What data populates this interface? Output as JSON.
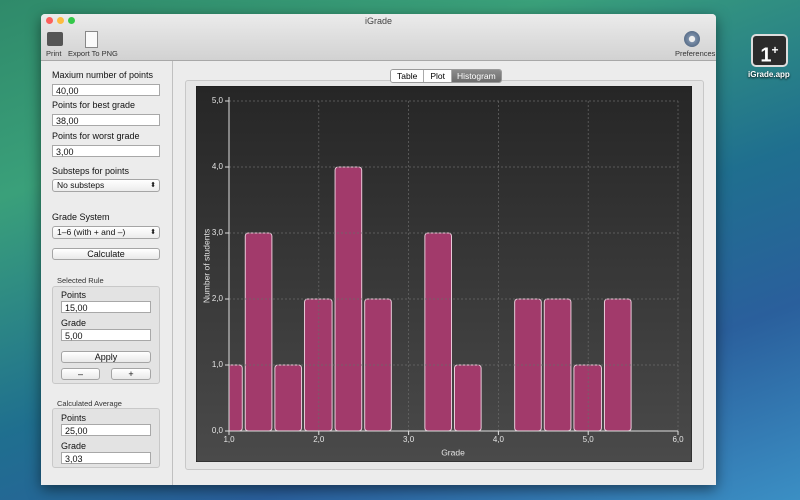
{
  "window": {
    "title": "iGrade"
  },
  "toolbar": {
    "print": "Print",
    "export": "Export To PNG",
    "preferences": "Preferences"
  },
  "desktop_icon": {
    "glyph": "1",
    "glyph_sup": "+",
    "label": "iGrade.app"
  },
  "sidebar": {
    "max_points": {
      "label": "Maxium number of points",
      "value": "40,00"
    },
    "best_grade": {
      "label": "Points for best grade",
      "value": "38,00"
    },
    "worst_grade": {
      "label": "Points for worst grade",
      "value": "3,00"
    },
    "substeps": {
      "label": "Substeps for points",
      "value": "No substeps"
    },
    "grade_system": {
      "label": "Grade System",
      "value": "1–6 (with + and –)"
    },
    "calculate": "Calculate",
    "selected_rule": {
      "title": "Selected Rule",
      "points_label": "Points",
      "points": "15,00",
      "grade_label": "Grade",
      "grade": "5,00",
      "apply": "Apply",
      "minus": "–",
      "plus": "+"
    },
    "calculated_average": {
      "title": "Calculated Average",
      "points_label": "Points",
      "points": "25,00",
      "grade_label": "Grade",
      "grade": "3,03"
    }
  },
  "tabs": [
    "Table",
    "Plot",
    "Histogram"
  ],
  "chart_data": {
    "type": "histogram",
    "bins": [
      0.83,
      1.17,
      1.5,
      1.83,
      2.17,
      2.5,
      2.83,
      3.17,
      3.5,
      3.83,
      4.17,
      4.5,
      4.83,
      5.17,
      5.5
    ],
    "values": [
      1,
      3,
      1,
      2,
      4,
      2,
      0,
      3,
      1,
      0,
      2,
      2,
      1,
      2
    ],
    "color": "#a23a6b",
    "x_label": "Grade",
    "y_label": "Number of students",
    "xlim": [
      1,
      6
    ],
    "xticks": [
      {
        "value": 1,
        "label": "1,0"
      },
      {
        "value": 2,
        "label": "2,0"
      },
      {
        "value": 3,
        "label": "3,0"
      },
      {
        "value": 4,
        "label": "4,0"
      },
      {
        "value": 5,
        "label": "5,0"
      },
      {
        "value": 6,
        "label": "6,0"
      }
    ],
    "ylim": [
      0,
      5
    ],
    "yticks": [
      {
        "value": 0,
        "label": "0,0"
      },
      {
        "value": 1,
        "label": "1,0"
      },
      {
        "value": 2,
        "label": "2,0"
      },
      {
        "value": 3,
        "label": "3,0"
      },
      {
        "value": 4,
        "label": "4,0"
      },
      {
        "value": 5,
        "label": "5,0"
      }
    ],
    "grid": true
  }
}
